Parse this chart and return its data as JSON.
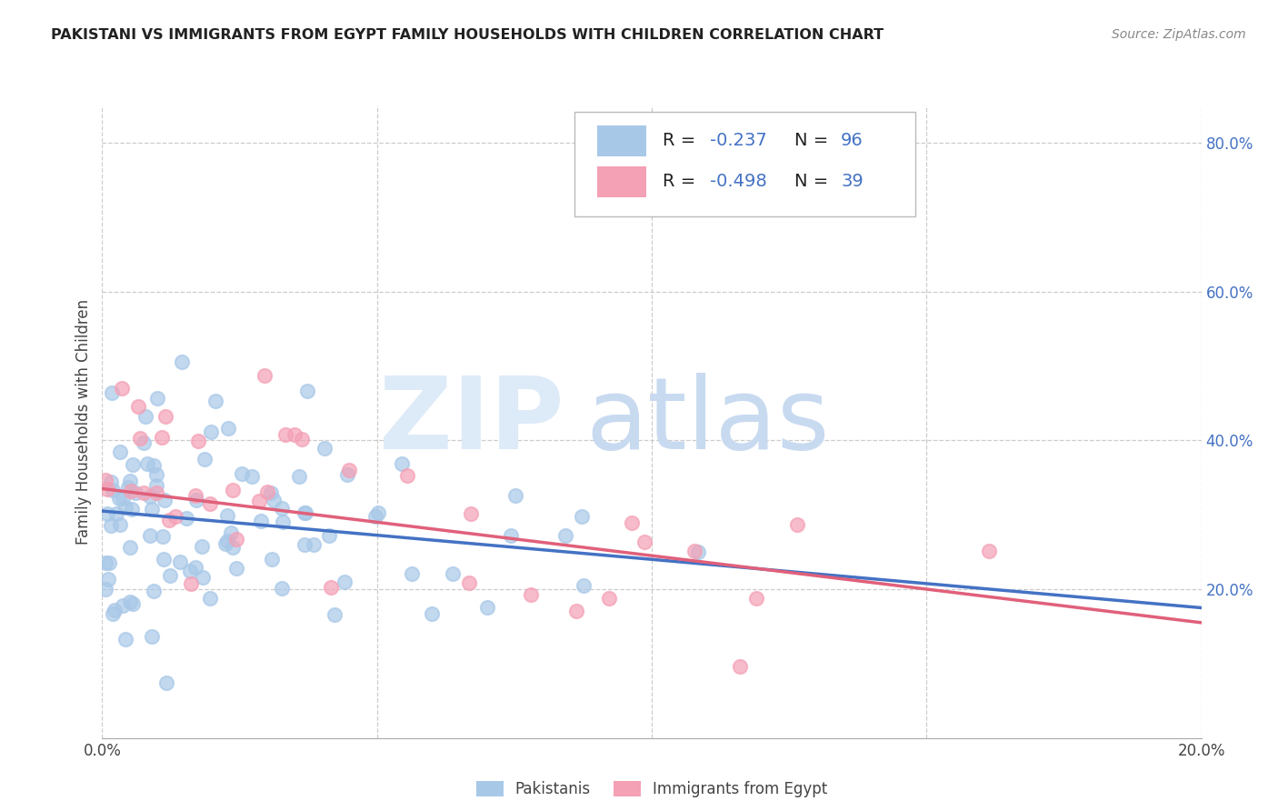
{
  "title": "PAKISTANI VS IMMIGRANTS FROM EGYPT FAMILY HOUSEHOLDS WITH CHILDREN CORRELATION CHART",
  "source": "Source: ZipAtlas.com",
  "ylabel": "Family Households with Children",
  "xlim": [
    0.0,
    0.2
  ],
  "ylim": [
    0.0,
    0.85
  ],
  "x_ticks": [
    0.0,
    0.05,
    0.1,
    0.15,
    0.2
  ],
  "x_tick_labels": [
    "0.0%",
    "",
    "",
    "",
    "20.0%"
  ],
  "y_ticks_right": [
    0.2,
    0.4,
    0.6,
    0.8
  ],
  "y_tick_labels_right": [
    "20.0%",
    "40.0%",
    "60.0%",
    "80.0%"
  ],
  "pakistani_color": "#a8c8e8",
  "egypt_color": "#f4a0b5",
  "pakistani_line_color": "#4472c4",
  "egypt_line_color": "#e0607a",
  "legend_R_pakistani": "-0.237",
  "legend_N_pakistani": "96",
  "legend_R_egypt": "-0.498",
  "legend_N_egypt": "39",
  "pak_trend_x0": 0.0,
  "pak_trend_y0": 0.305,
  "pak_trend_x1": 0.2,
  "pak_trend_y1": 0.175,
  "egy_trend_x0": 0.0,
  "egy_trend_y0": 0.335,
  "egy_trend_x1": 0.2,
  "egy_trend_y1": 0.155
}
